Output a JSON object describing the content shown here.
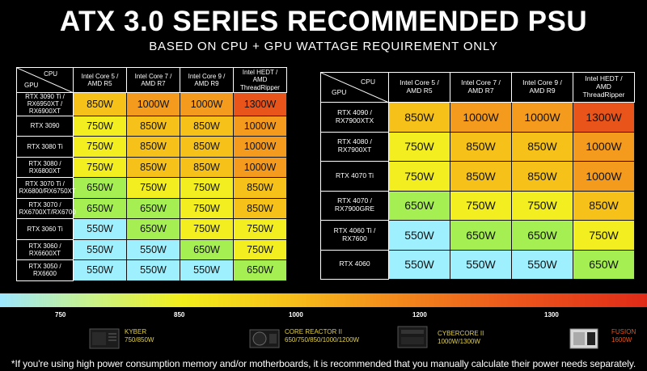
{
  "title": "ATX 3.0 SERIES RECOMMENDED PSU",
  "subtitle": "BASED ON CPU + GPU WATTAGE REQUIREMENT ONLY",
  "colors": {
    "550W": "#9ff0ff",
    "650W": "#a6ef52",
    "750W": "#f2ee20",
    "850W": "#f6c21a",
    "1000W": "#f49a1c",
    "1300W": "#e9541a"
  },
  "table_left": {
    "corner": {
      "cpu": "CPU",
      "gpu": "GPU"
    },
    "cpus": [
      "Intel Core 5 / AMD R5",
      "Intel Core 7 / AMD R7",
      "Intel Core 9 / AMD R9",
      "Intel HEDT / AMD ThreadRipper"
    ],
    "rows": [
      {
        "gpu": "RTX 3090 Ti / RX6950XT / RX6900XT",
        "values": [
          "850W",
          "1000W",
          "1000W",
          "1300W"
        ]
      },
      {
        "gpu": "RTX 3090",
        "values": [
          "750W",
          "850W",
          "850W",
          "1000W"
        ]
      },
      {
        "gpu": "RTX 3080 Ti",
        "values": [
          "750W",
          "850W",
          "850W",
          "1000W"
        ]
      },
      {
        "gpu": "RTX 3080 / RX6800XT",
        "values": [
          "750W",
          "850W",
          "850W",
          "1000W"
        ]
      },
      {
        "gpu": "RTX 3070 Ti / RX6800/RX6750XT",
        "values": [
          "650W",
          "750W",
          "750W",
          "850W"
        ]
      },
      {
        "gpu": "RTX 3070 / RX6700XT/RX6700",
        "values": [
          "650W",
          "650W",
          "750W",
          "850W"
        ]
      },
      {
        "gpu": "RTX 3060 Ti",
        "values": [
          "550W",
          "650W",
          "750W",
          "750W"
        ]
      },
      {
        "gpu": "RTX 3060 / RX6600XT",
        "values": [
          "550W",
          "550W",
          "650W",
          "750W"
        ]
      },
      {
        "gpu": "RTX 3050 / RX6600",
        "values": [
          "550W",
          "550W",
          "550W",
          "650W"
        ]
      }
    ]
  },
  "table_right": {
    "corner": {
      "cpu": "CPU",
      "gpu": "GPU"
    },
    "cpus": [
      "Intel Core 5 / AMD R5",
      "Intel Core 7 / AMD R7",
      "Intel Core 9 / AMD R9",
      "Intel HEDT / AMD ThreadRipper"
    ],
    "rows": [
      {
        "gpu": "RTX 4090 / RX7900XTX",
        "values": [
          "850W",
          "1000W",
          "1000W",
          "1300W"
        ]
      },
      {
        "gpu": "RTX 4080 / RX7900XT",
        "values": [
          "750W",
          "850W",
          "850W",
          "1000W"
        ]
      },
      {
        "gpu": "RTX 4070 Ti",
        "values": [
          "750W",
          "850W",
          "850W",
          "1000W"
        ]
      },
      {
        "gpu": "RTX 4070 / RX7900GRE",
        "values": [
          "650W",
          "750W",
          "750W",
          "850W"
        ]
      },
      {
        "gpu": "RTX 4060 Ti / RX7600",
        "values": [
          "550W",
          "650W",
          "650W",
          "750W"
        ]
      },
      {
        "gpu": "RTX 4060",
        "values": [
          "550W",
          "550W",
          "550W",
          "650W"
        ]
      }
    ]
  },
  "wattage_scale": {
    "ticks": [
      "750",
      "850",
      "1000",
      "1200",
      "1300"
    ]
  },
  "products": [
    {
      "name": "KYBER",
      "watts": "750/850W"
    },
    {
      "name": "CORE REACTOR II",
      "watts": "650/750/850/1000/1200W"
    },
    {
      "name": "CYBERCORE II",
      "watts": "1000W/1300W"
    },
    {
      "name": "FUSION",
      "watts": "1600W"
    }
  ],
  "footnote": "*If you're using high power consumption memory and/or motherboards, it is recommended that you manually calculate their power needs separately."
}
